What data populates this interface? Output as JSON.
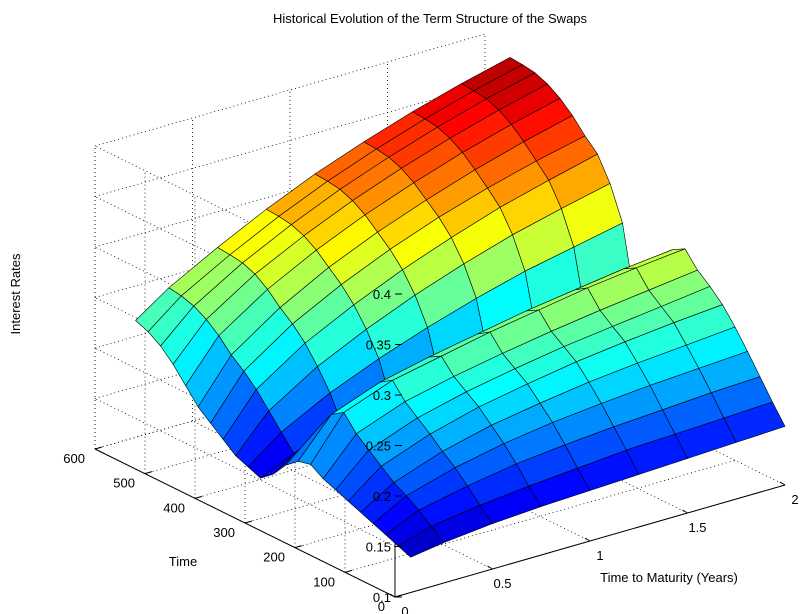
{
  "chart_data": {
    "type": "surface",
    "title": "Historical Evolution of the Term Structure of the Swaps",
    "xlabel": "Time to Maturity (Years)",
    "ylabel": "Time",
    "zlabel": "Interest Rates",
    "xlim": [
      0,
      2
    ],
    "ylim": [
      0,
      600
    ],
    "zlim": [
      0.1,
      0.4
    ],
    "x_ticks": [
      "0",
      "0.5",
      "1",
      "1.5",
      "2"
    ],
    "y_ticks": [
      "0",
      "100",
      "200",
      "300",
      "400",
      "500",
      "600"
    ],
    "z_ticks": [
      "0.1",
      "0.15",
      "0.2",
      "0.25",
      "0.3",
      "0.35",
      "0.4"
    ],
    "grid": true,
    "colormap": "jet",
    "maturities": [
      0.08,
      0.25,
      0.5,
      0.75,
      1.0,
      1.25,
      1.5,
      1.75,
      2.0
    ],
    "time_samples": [
      0,
      25,
      50,
      75,
      100,
      125,
      150,
      175,
      200,
      225,
      250,
      275,
      300,
      325,
      350,
      375,
      400,
      425,
      450,
      475,
      500,
      525,
      550
    ],
    "curves": [
      {
        "time": 0,
        "rates": [
          0.135,
          0.14,
          0.145,
          0.148,
          0.15,
          0.152,
          0.154,
          0.156,
          0.158
        ]
      },
      {
        "time": 25,
        "rates": [
          0.14,
          0.15,
          0.157,
          0.162,
          0.166,
          0.17,
          0.172,
          0.174,
          0.176
        ]
      },
      {
        "time": 50,
        "rates": [
          0.145,
          0.16,
          0.17,
          0.178,
          0.183,
          0.187,
          0.19,
          0.193,
          0.195
        ]
      },
      {
        "time": 75,
        "rates": [
          0.15,
          0.168,
          0.182,
          0.192,
          0.199,
          0.204,
          0.208,
          0.211,
          0.214
        ]
      },
      {
        "time": 100,
        "rates": [
          0.155,
          0.175,
          0.192,
          0.204,
          0.212,
          0.219,
          0.224,
          0.228,
          0.232
        ]
      },
      {
        "time": 125,
        "rates": [
          0.16,
          0.185,
          0.203,
          0.216,
          0.225,
          0.233,
          0.239,
          0.244,
          0.248
        ]
      },
      {
        "time": 150,
        "rates": [
          0.165,
          0.195,
          0.213,
          0.225,
          0.234,
          0.242,
          0.248,
          0.254,
          0.26
        ]
      },
      {
        "time": 175,
        "rates": [
          0.17,
          0.205,
          0.223,
          0.234,
          0.243,
          0.251,
          0.258,
          0.264,
          0.27
        ]
      },
      {
        "time": 200,
        "rates": [
          0.178,
          0.22,
          0.238,
          0.248,
          0.258,
          0.266,
          0.274,
          0.28,
          0.285
        ]
      },
      {
        "time": 225,
        "rates": [
          0.175,
          0.212,
          0.23,
          0.241,
          0.25,
          0.259,
          0.266,
          0.273,
          0.278
        ]
      },
      {
        "time": 250,
        "rates": [
          0.165,
          0.193,
          0.21,
          0.222,
          0.232,
          0.24,
          0.247,
          0.253,
          0.258
        ]
      },
      {
        "time": 275,
        "rates": [
          0.15,
          0.17,
          0.185,
          0.195,
          0.203,
          0.21,
          0.216,
          0.221,
          0.225
        ]
      },
      {
        "time": 300,
        "rates": [
          0.14,
          0.155,
          0.168,
          0.178,
          0.186,
          0.193,
          0.199,
          0.204,
          0.209
        ]
      },
      {
        "time": 325,
        "rates": [
          0.145,
          0.17,
          0.195,
          0.215,
          0.232,
          0.247,
          0.26,
          0.27,
          0.28
        ]
      },
      {
        "time": 350,
        "rates": [
          0.15,
          0.185,
          0.215,
          0.238,
          0.258,
          0.275,
          0.29,
          0.302,
          0.313
        ]
      },
      {
        "time": 375,
        "rates": [
          0.16,
          0.2,
          0.232,
          0.256,
          0.277,
          0.295,
          0.311,
          0.324,
          0.336
        ]
      },
      {
        "time": 400,
        "rates": [
          0.17,
          0.212,
          0.245,
          0.27,
          0.291,
          0.309,
          0.324,
          0.337,
          0.348
        ]
      },
      {
        "time": 425,
        "rates": [
          0.18,
          0.222,
          0.255,
          0.281,
          0.302,
          0.32,
          0.336,
          0.35,
          0.362
        ]
      },
      {
        "time": 450,
        "rates": [
          0.195,
          0.235,
          0.267,
          0.292,
          0.313,
          0.331,
          0.347,
          0.361,
          0.373
        ]
      },
      {
        "time": 475,
        "rates": [
          0.21,
          0.245,
          0.276,
          0.3,
          0.321,
          0.339,
          0.355,
          0.369,
          0.381
        ]
      },
      {
        "time": 500,
        "rates": [
          0.222,
          0.252,
          0.281,
          0.305,
          0.326,
          0.344,
          0.36,
          0.374,
          0.386
        ]
      },
      {
        "time": 525,
        "rates": [
          0.23,
          0.256,
          0.283,
          0.307,
          0.328,
          0.346,
          0.362,
          0.376,
          0.388
        ]
      },
      {
        "time": 550,
        "rates": [
          0.235,
          0.258,
          0.284,
          0.308,
          0.329,
          0.347,
          0.363,
          0.377,
          0.389
        ]
      }
    ]
  }
}
